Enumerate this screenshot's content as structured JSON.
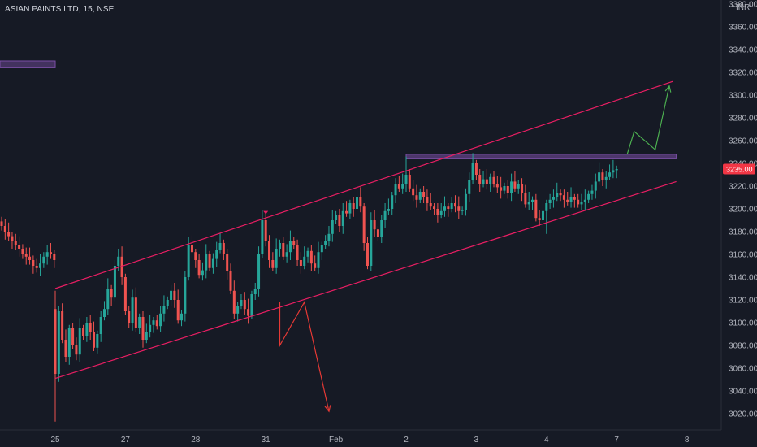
{
  "header": {
    "title": "ASIAN PAINTS LTD, 15, NSE",
    "currency": "INR"
  },
  "chart_data": {
    "type": "candlestick",
    "symbol": "ASIAN PAINTS LTD",
    "interval": "15",
    "exchange": "NSE",
    "currency": "INR",
    "ylim": [
      3010,
      3380
    ],
    "y_ticks": [
      "3020.00",
      "3040.00",
      "3060.00",
      "3080.00",
      "3100.00",
      "3120.00",
      "3140.00",
      "3160.00",
      "3180.00",
      "3200.00",
      "3220.00",
      "3240.00",
      "3260.00",
      "3280.00",
      "3300.00",
      "3320.00",
      "3340.00",
      "3360.00"
    ],
    "y_top_tick_partial": "3380.00",
    "x_ticks": [
      {
        "label": "25",
        "bar": 0
      },
      {
        "label": "27",
        "bar": 20
      },
      {
        "label": "28",
        "bar": 40
      },
      {
        "label": "31",
        "bar": 60
      },
      {
        "label": "Feb",
        "bar": 80
      },
      {
        "label": "2",
        "bar": 100
      },
      {
        "label": "3",
        "bar": 120
      },
      {
        "label": "4",
        "bar": 140
      },
      {
        "label": "7",
        "bar": 160
      },
      {
        "label": "8",
        "bar": 180
      }
    ],
    "last_price": "3235.00",
    "closes_left": [
      3185,
      3180,
      3176,
      3172,
      3168,
      3165,
      3160,
      3158,
      3155,
      3150,
      3148,
      3152,
      3158,
      3162,
      3160,
      3155
    ],
    "closes": [
      3055,
      3110,
      3085,
      3070,
      3095,
      3080,
      3072,
      3095,
      3088,
      3100,
      3092,
      3078,
      3090,
      3105,
      3112,
      3130,
      3122,
      3150,
      3158,
      3140,
      3110,
      3100,
      3122,
      3095,
      3105,
      3085,
      3092,
      3098,
      3102,
      3097,
      3108,
      3115,
      3120,
      3128,
      3120,
      3102,
      3108,
      3140,
      3168,
      3162,
      3155,
      3142,
      3146,
      3160,
      3148,
      3156,
      3164,
      3170,
      3160,
      3145,
      3128,
      3108,
      3115,
      3120,
      3112,
      3106,
      3125,
      3130,
      3160,
      3190,
      3172,
      3155,
      3148,
      3165,
      3170,
      3158,
      3162,
      3172,
      3168,
      3155,
      3150,
      3158,
      3163,
      3152,
      3148,
      3162,
      3168,
      3172,
      3178,
      3190,
      3195,
      3185,
      3198,
      3196,
      3205,
      3200,
      3210,
      3202,
      3170,
      3150,
      3190,
      3182,
      3175,
      3190,
      3198,
      3200,
      3212,
      3222,
      3218,
      3222,
      3230,
      3218,
      3212,
      3208,
      3215,
      3210,
      3205,
      3202,
      3200,
      3195,
      3198,
      3202,
      3200,
      3205,
      3202,
      3198,
      3199,
      3213,
      3225,
      3240,
      3230,
      3222,
      3226,
      3222,
      3228,
      3222,
      3219,
      3216,
      3220,
      3214,
      3224,
      3218,
      3222,
      3214,
      3204,
      3206,
      3208,
      3192,
      3190,
      3198,
      3205,
      3208,
      3210,
      3214,
      3212,
      3208,
      3206,
      3210,
      3208,
      3204,
      3206,
      3208,
      3213,
      3216,
      3224,
      3232,
      3225,
      3228,
      3232,
      3234,
      3235
    ],
    "highs_marked": {
      "bar": 100,
      "value": 3246
    },
    "channel_upper": {
      "start": {
        "bar": 0,
        "value": 3130
      },
      "end": {
        "bar": 176,
        "value": 3312
      }
    },
    "channel_lower": {
      "start": {
        "bar": 0,
        "value": 3051
      },
      "end": {
        "bar": 177,
        "value": 3224
      }
    },
    "resistance_zone": {
      "from_bar": 100,
      "to_bar": 177,
      "low": 3244,
      "high": 3248
    },
    "left_zone": {
      "low": 3324,
      "high": 3330
    },
    "bearish_path": [
      {
        "bar": 64,
        "value": 3118
      },
      {
        "bar": 64,
        "value": 3080
      },
      {
        "bar": 71,
        "value": 3118
      },
      {
        "bar": 78,
        "value": 3022
      }
    ],
    "bullish_path": [
      {
        "bar": 163,
        "value": 3248
      },
      {
        "bar": 165,
        "value": 3268
      },
      {
        "bar": 171,
        "value": 3252
      },
      {
        "bar": 175,
        "value": 3308
      }
    ],
    "colors": {
      "up": "#26a69a",
      "down": "#ef5350",
      "channel": "#e91e63",
      "zone": "#7b4fa6",
      "bull_arrow": "#4caf50",
      "bear_arrow": "#e53935",
      "price_tag": "#f23645",
      "background": "#161a25",
      "grid": "#1f2330"
    }
  }
}
